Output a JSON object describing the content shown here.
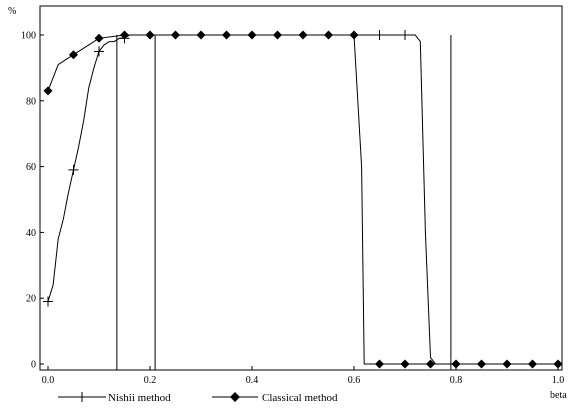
{
  "chart_data": {
    "type": "line",
    "title": "",
    "ylabel": "%",
    "xlabel": "beta",
    "xlim": [
      0,
      1.0
    ],
    "ylim": [
      0,
      100
    ],
    "x_ticks": [
      0.0,
      0.2,
      0.4,
      0.6,
      0.8,
      1.0
    ],
    "x_tick_labels": [
      "0.0",
      "0.2",
      "0.4",
      "0.6",
      "0.8",
      "1.0"
    ],
    "y_ticks": [
      0,
      20,
      40,
      60,
      80,
      100
    ],
    "y_tick_labels": [
      "0",
      "20",
      "40",
      "60",
      "80",
      "100"
    ],
    "grid": false,
    "legend_position": "bottom",
    "series": [
      {
        "name": "Nishii method",
        "marker": "plus",
        "color": "#000000",
        "x": [
          0.0,
          0.01,
          0.02,
          0.03,
          0.04,
          0.05,
          0.06,
          0.07,
          0.08,
          0.09,
          0.1,
          0.11,
          0.12,
          0.13,
          0.14,
          0.15,
          0.16,
          0.2,
          0.25,
          0.3,
          0.35,
          0.4,
          0.45,
          0.5,
          0.55,
          0.6,
          0.65,
          0.7,
          0.72,
          0.73,
          0.74,
          0.75,
          0.76,
          0.8,
          0.85,
          0.9,
          0.95,
          1.0
        ],
        "y": [
          19,
          24,
          38,
          44,
          52,
          59,
          66,
          74,
          84,
          90,
          95,
          97,
          98,
          98,
          99,
          99,
          100,
          100,
          100,
          100,
          100,
          100,
          100,
          100,
          100,
          100,
          100,
          100,
          100,
          98,
          40,
          2,
          0,
          0,
          0,
          0,
          0,
          0
        ]
      },
      {
        "name": "Classical method",
        "marker": "diamond",
        "color": "#000000",
        "x": [
          0.0,
          0.02,
          0.05,
          0.07,
          0.1,
          0.15,
          0.2,
          0.25,
          0.3,
          0.35,
          0.4,
          0.45,
          0.5,
          0.55,
          0.6,
          0.615,
          0.62,
          0.65,
          0.7,
          0.75,
          0.8,
          0.85,
          0.9,
          0.95,
          1.0
        ],
        "y": [
          83,
          91,
          94,
          96,
          99,
          100,
          100,
          100,
          100,
          100,
          100,
          100,
          100,
          100,
          100,
          60,
          0,
          0,
          0,
          0,
          0,
          0,
          0,
          0,
          0
        ]
      }
    ],
    "nishii_plus_marker_x": [
      0.0,
      0.05,
      0.1,
      0.15,
      0.65,
      0.7
    ],
    "classical_diamond_marker_x": [
      0.0,
      0.05,
      0.1,
      0.15,
      0.2,
      0.25,
      0.3,
      0.35,
      0.4,
      0.45,
      0.5,
      0.55,
      0.6,
      0.65,
      0.7,
      0.75,
      0.8,
      0.85,
      0.9,
      0.95,
      1.0
    ],
    "vertical_lines_x": [
      0.135,
      0.21,
      0.79
    ]
  }
}
